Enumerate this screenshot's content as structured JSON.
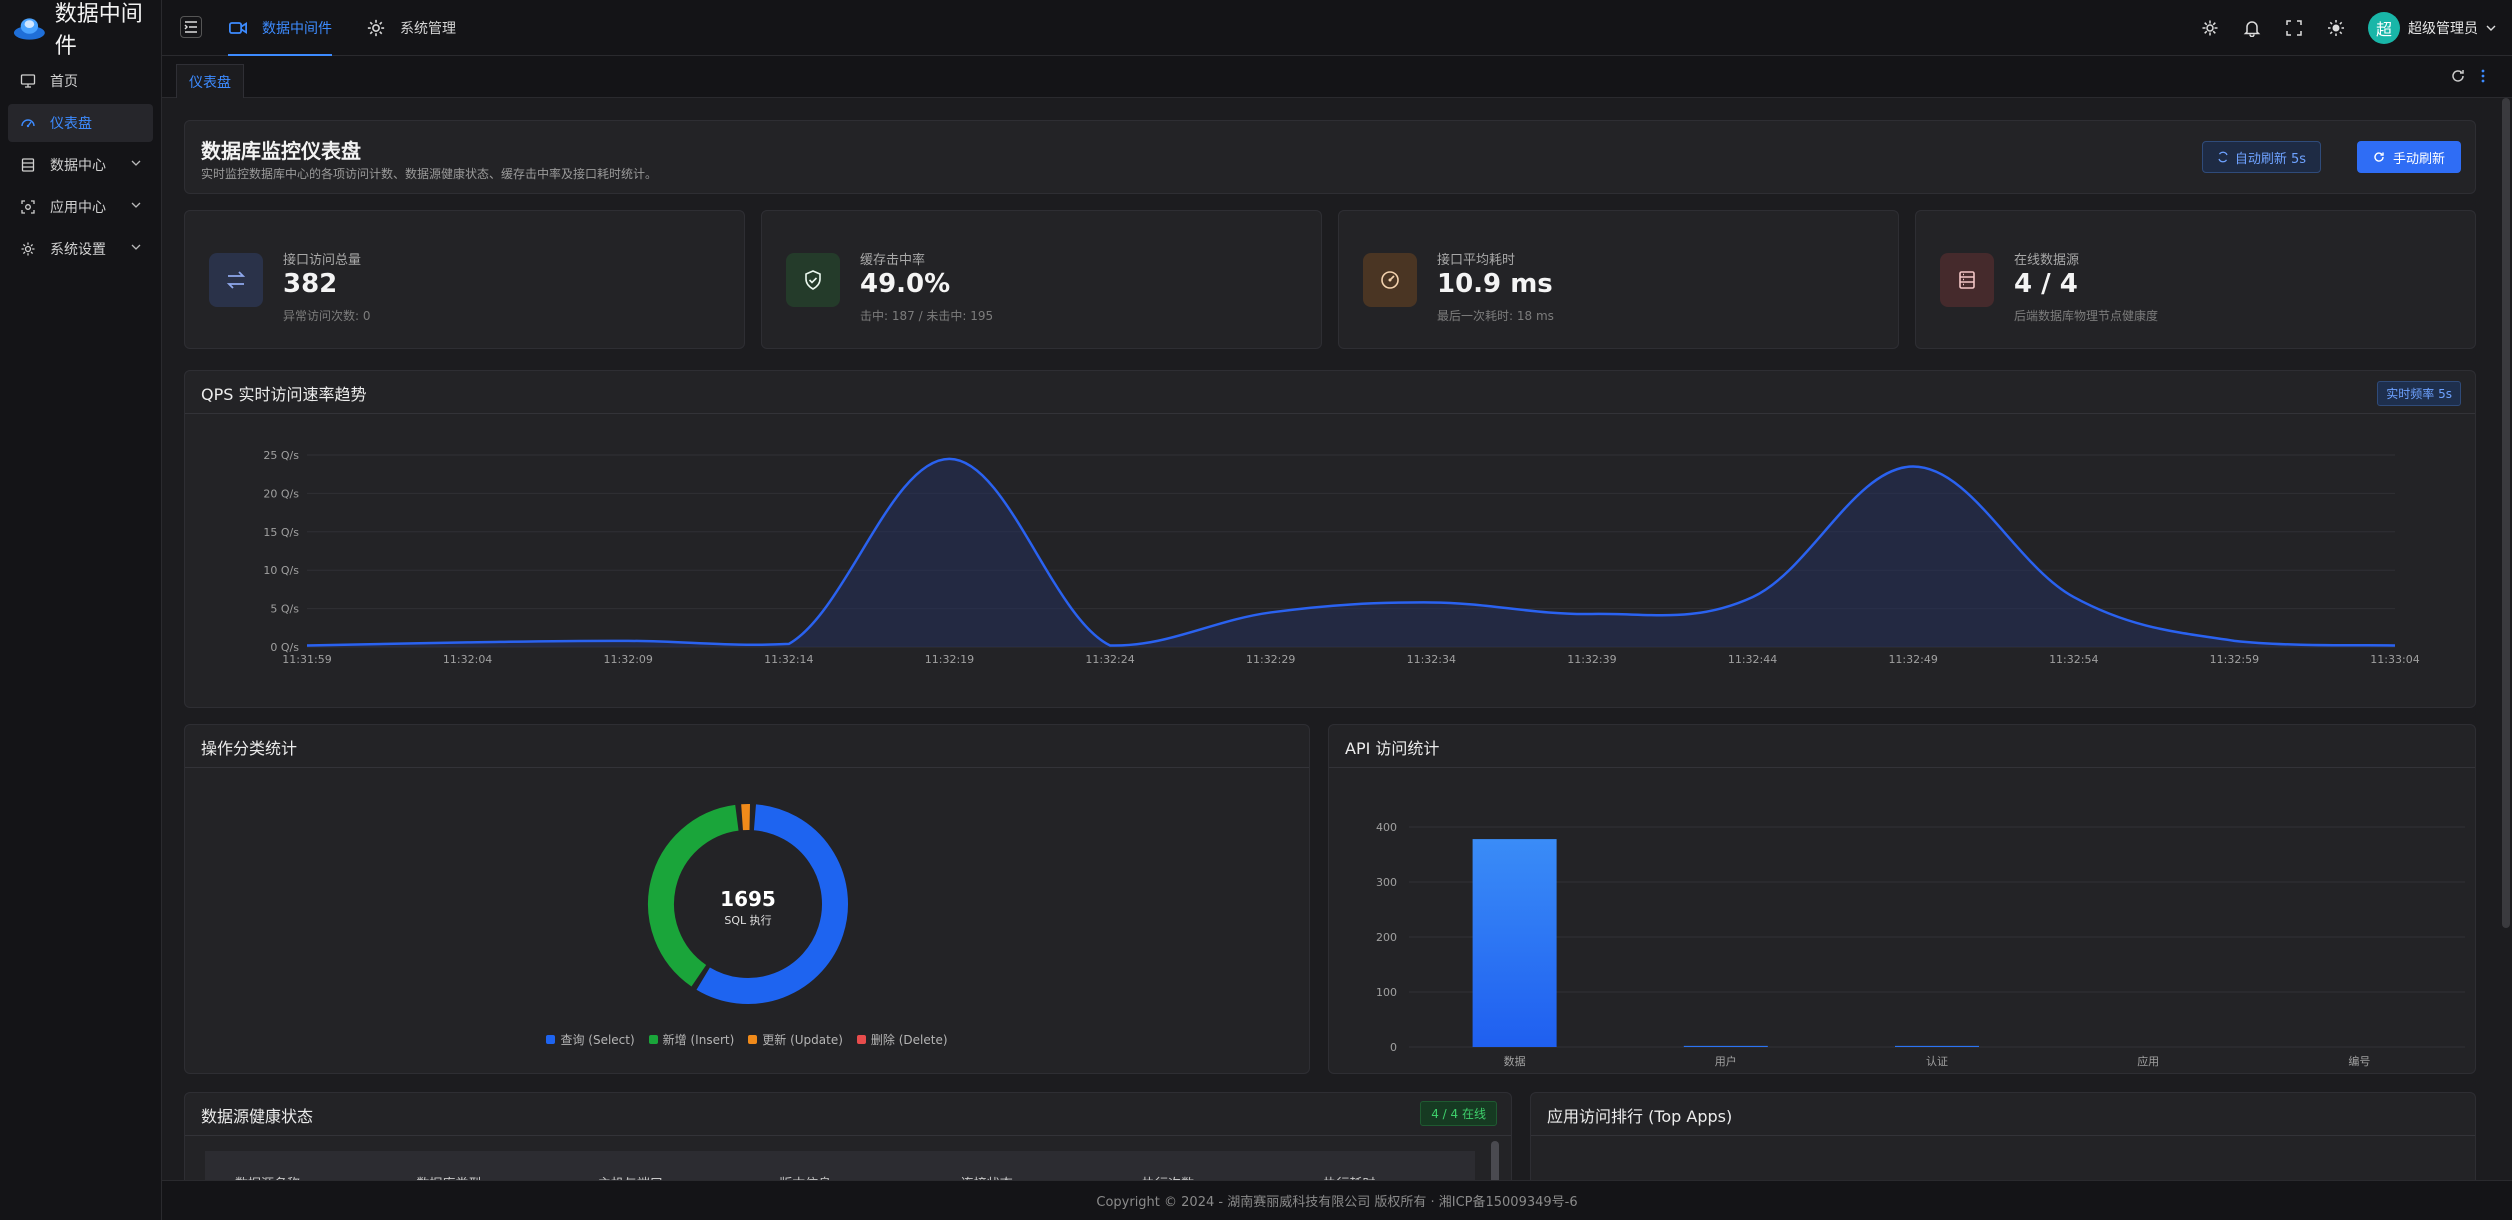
{
  "app": {
    "title": "数据中间件"
  },
  "sidebar": {
    "items": [
      {
        "label": "首页",
        "icon": "monitor-icon",
        "active": false,
        "expandable": false
      },
      {
        "label": "仪表盘",
        "icon": "dashboard-icon",
        "active": true,
        "expandable": false
      },
      {
        "label": "数据中心",
        "icon": "database-icon",
        "active": false,
        "expandable": true
      },
      {
        "label": "应用中心",
        "icon": "app-center-icon",
        "active": false,
        "expandable": true
      },
      {
        "label": "系统设置",
        "icon": "gear-icon",
        "active": false,
        "expandable": true
      }
    ]
  },
  "topnav": {
    "items": [
      {
        "label": "数据中间件",
        "icon": "video-icon",
        "active": true
      },
      {
        "label": "系统管理",
        "icon": "gear-icon",
        "active": false
      }
    ]
  },
  "topbar": {
    "avatar_char": "超",
    "user_name": "超级管理员"
  },
  "tabs": {
    "active_tab": "仪表盘"
  },
  "header": {
    "title": "数据库监控仪表盘",
    "subtitle": "实时监控数据库中心的各项访问计数、数据源健康状态、缓存击中率及接口耗时统计。",
    "auto_refresh_label": "自动刷新 5s",
    "manual_refresh_label": "手动刷新"
  },
  "stats": [
    {
      "label": "接口访问总量",
      "value": "382",
      "sub": "异常访问次数: 0",
      "icon": "transfer-icon",
      "color": "#5a7bd0",
      "bg": "#2a3249"
    },
    {
      "label": "缓存击中率",
      "value": "49.0%",
      "sub": "击中: 187 / 未击中: 195",
      "icon": "shield-check-icon",
      "color": "#3fcf6a",
      "bg": "#243b2a"
    },
    {
      "label": "接口平均耗时",
      "value": "10.9 ms",
      "sub": "最后一次耗时: 18 ms",
      "icon": "speedometer-icon",
      "color": "#e8a35a",
      "bg": "#4a3523"
    },
    {
      "label": "在线数据源",
      "value": "4 / 4",
      "sub": "后端数据库物理节点健康度",
      "icon": "server-icon",
      "color": "#e87a7a",
      "bg": "#452a2c"
    }
  ],
  "qps": {
    "title": "QPS 实时访问速率趋势",
    "badge": "实时频率 5s"
  },
  "ops": {
    "title": "操作分类统计",
    "center_value": "1695",
    "center_label": "SQL 执行"
  },
  "api": {
    "title": "API 访问统计"
  },
  "health": {
    "title": "数据源健康状态",
    "badge": "4 / 4 在线",
    "columns": [
      "数据源名称",
      "数据库类型",
      "主机与端口",
      "版本信息",
      "连接状态",
      "执行次数",
      "执行耗时"
    ]
  },
  "apps": {
    "title": "应用访问排行 (Top Apps)"
  },
  "footer": {
    "text": "Copyright © 2024 - 湖南赛丽威科技有限公司 版权所有 · 湘ICP备15009349号-6"
  },
  "chart_data": [
    {
      "type": "area",
      "title": "QPS 实时访问速率趋势",
      "x": [
        "11:31:59",
        "11:32:04",
        "11:32:09",
        "11:32:14",
        "11:32:19",
        "11:32:24",
        "11:32:29",
        "11:32:34",
        "11:32:39",
        "11:32:44",
        "11:32:49",
        "11:32:54",
        "11:32:59",
        "11:33:04"
      ],
      "y_ticks": [
        "0 Q/s",
        "5 Q/s",
        "10 Q/s",
        "15 Q/s",
        "20 Q/s",
        "25 Q/s"
      ],
      "values": [
        0.2,
        0.6,
        0.8,
        0.4,
        24.5,
        0.2,
        4.5,
        5.8,
        4.3,
        6.5,
        23.5,
        6.5,
        0.8,
        0.2
      ],
      "ylim": [
        0,
        25
      ],
      "grid": true,
      "color": "#2a62f0"
    },
    {
      "type": "pie",
      "title": "操作分类统计",
      "series": [
        {
          "name": "查询 (Select)",
          "value": 988,
          "color": "#1e64f0"
        },
        {
          "name": "新增 (Insert)",
          "value": 667,
          "color": "#1aa53a"
        },
        {
          "name": "更新 (Update)",
          "value": 40,
          "color": "#f08a1a"
        },
        {
          "name": "删除 (Delete)",
          "value": 0,
          "color": "#e84c4c"
        }
      ],
      "total": 1695
    },
    {
      "type": "bar",
      "title": "API 访问统计",
      "categories": [
        "数据",
        "用户",
        "认证",
        "应用",
        "编号"
      ],
      "values": [
        378,
        2,
        2,
        0,
        0
      ],
      "y_ticks": [
        "0",
        "100",
        "200",
        "300",
        "400"
      ],
      "ylim": [
        0,
        400
      ],
      "color": "#2f7af5"
    }
  ]
}
